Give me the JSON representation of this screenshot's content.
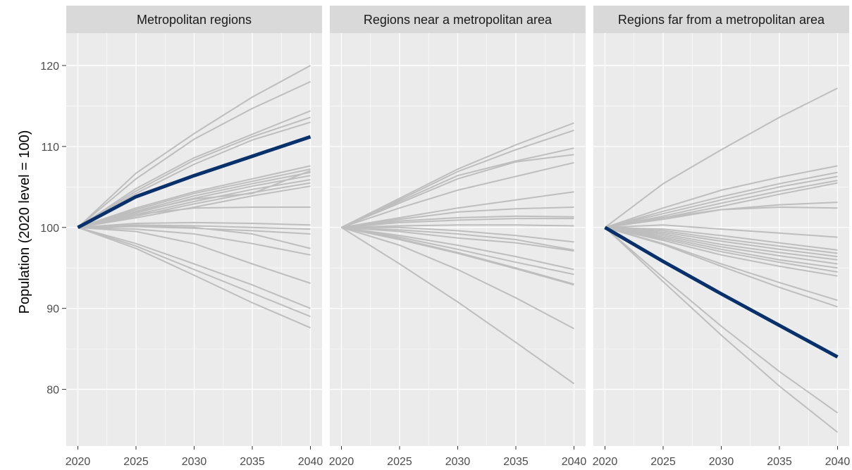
{
  "chart_data": {
    "type": "line",
    "ylabel": "Population (2020 level = 100)",
    "xlabel": "",
    "x": [
      2020,
      2025,
      2030,
      2035,
      2040
    ],
    "xlim": [
      2019,
      2041
    ],
    "ylim": [
      73,
      124
    ],
    "x_ticks": [
      "2020",
      "2025",
      "2030",
      "2035",
      "2040"
    ],
    "y_ticks": [
      "80",
      "90",
      "100",
      "110",
      "120"
    ],
    "y_tick_values": [
      80,
      90,
      100,
      110,
      120
    ],
    "grid": true,
    "colors": {
      "panel_bg": "#ebebeb",
      "strip_bg": "#d9d9d9",
      "grid": "#ffffff",
      "background_lines": "#bebebe",
      "highlight": "#08306b"
    },
    "panels": [
      {
        "title": "Metropolitan regions",
        "highlight": [
          100,
          103.8,
          106.4,
          108.8,
          111.2
        ],
        "series": [
          [
            100,
            106.7,
            111.6,
            116.1,
            120.0
          ],
          [
            100,
            106.0,
            110.9,
            114.7,
            118.0
          ],
          [
            100,
            104.8,
            108.6,
            111.5,
            114.4
          ],
          [
            100,
            104.5,
            108.3,
            111.2,
            113.6
          ],
          [
            100,
            104.2,
            107.8,
            110.8,
            113.0
          ],
          [
            100,
            102.4,
            104.4,
            106.0,
            107.6
          ],
          [
            100,
            102.2,
            104.2,
            105.7,
            107.2
          ],
          [
            100,
            102.0,
            103.9,
            105.4,
            106.8
          ],
          [
            100,
            101.8,
            103.6,
            105.1,
            106.4
          ],
          [
            100,
            101.6,
            103.2,
            104.7,
            105.9
          ],
          [
            100,
            101.4,
            102.9,
            104.3,
            105.5
          ],
          [
            100,
            101.2,
            102.5,
            103.9,
            105.1
          ],
          [
            100,
            101.9,
            103.5,
            104.2,
            107.0
          ],
          [
            100,
            101.6,
            102.4,
            102.5,
            102.5
          ],
          [
            100,
            100.5,
            100.6,
            100.5,
            100.3
          ],
          [
            100,
            100.3,
            100.2,
            100.0,
            99.8
          ],
          [
            100,
            100.1,
            99.9,
            99.6,
            99.2
          ],
          [
            100,
            100.2,
            100.0,
            99.2,
            97.4
          ],
          [
            100,
            99.8,
            99.2,
            98.0,
            96.6
          ],
          [
            100,
            99.5,
            98.0,
            95.5,
            93.1
          ],
          [
            100,
            98.0,
            95.5,
            92.9,
            90.0
          ],
          [
            100,
            97.7,
            94.8,
            91.9,
            89.0
          ],
          [
            100,
            97.4,
            94.1,
            90.7,
            87.6
          ]
        ]
      },
      {
        "title": "Regions near a metropolitan area",
        "highlight": [],
        "series": [
          [
            100,
            103.6,
            107.2,
            110.2,
            112.9
          ],
          [
            100,
            103.4,
            106.9,
            109.6,
            112.0
          ],
          [
            100,
            103.2,
            106.4,
            108.2,
            109.8
          ],
          [
            100,
            103.0,
            106.0,
            108.1,
            109.0
          ],
          [
            100,
            102.4,
            104.6,
            106.3,
            108.0
          ],
          [
            100,
            101.2,
            102.4,
            103.4,
            104.4
          ],
          [
            100,
            101.0,
            101.9,
            102.3,
            102.5
          ],
          [
            100,
            100.8,
            101.2,
            101.4,
            101.3
          ],
          [
            100,
            100.6,
            100.9,
            101.1,
            101.1
          ],
          [
            100,
            100.2,
            100.3,
            100.3,
            100.2
          ],
          [
            100,
            100.0,
            99.6,
            99.0,
            98.2
          ],
          [
            100,
            99.7,
            99.2,
            98.5,
            97.2
          ],
          [
            100,
            99.5,
            98.7,
            98.1,
            97.1
          ],
          [
            100,
            99.0,
            97.8,
            96.4,
            94.8
          ],
          [
            100,
            98.8,
            97.3,
            95.7,
            94.2
          ],
          [
            100,
            98.6,
            96.9,
            95.0,
            93.0
          ],
          [
            100,
            98.5,
            96.8,
            94.9,
            92.9
          ],
          [
            100,
            97.8,
            94.8,
            91.3,
            87.5
          ],
          [
            100,
            95.5,
            90.8,
            85.8,
            80.7
          ]
        ]
      },
      {
        "title": "Regions far from a metropolitan area",
        "highlight": [
          100,
          95.8,
          91.8,
          87.9,
          84.0
        ],
        "series": [
          [
            100,
            105.4,
            109.6,
            113.6,
            117.2
          ],
          [
            100,
            102.4,
            104.6,
            106.2,
            107.6
          ],
          [
            100,
            102.0,
            103.8,
            105.4,
            106.8
          ],
          [
            100,
            101.7,
            103.4,
            105.0,
            106.3
          ],
          [
            100,
            101.4,
            103.0,
            104.5,
            105.8
          ],
          [
            100,
            101.2,
            102.6,
            104.1,
            105.5
          ],
          [
            100,
            101.0,
            102.2,
            102.8,
            103.1
          ],
          [
            100,
            101.2,
            102.2,
            102.5,
            102.4
          ],
          [
            100,
            100.3,
            99.8,
            99.3,
            98.8
          ],
          [
            100,
            99.8,
            99.0,
            98.1,
            97.2
          ],
          [
            100,
            99.6,
            98.6,
            97.7,
            96.8
          ],
          [
            100,
            99.4,
            98.3,
            97.3,
            96.4
          ],
          [
            100,
            99.2,
            97.9,
            96.9,
            96.0
          ],
          [
            100,
            99.0,
            97.6,
            96.5,
            95.5
          ],
          [
            100,
            98.8,
            97.3,
            96.0,
            95.0
          ],
          [
            100,
            98.6,
            97.0,
            95.7,
            94.5
          ],
          [
            100,
            98.4,
            96.6,
            95.2,
            94.0
          ],
          [
            100,
            98.0,
            95.5,
            93.2,
            91.0
          ],
          [
            100,
            97.9,
            95.2,
            92.6,
            90.2
          ],
          [
            100,
            93.8,
            87.8,
            82.2,
            77.1
          ],
          [
            100,
            93.3,
            86.7,
            80.4,
            74.7
          ]
        ]
      }
    ]
  }
}
